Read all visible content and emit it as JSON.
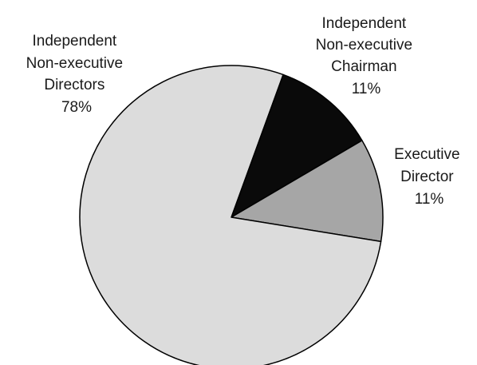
{
  "chart_data": {
    "type": "pie",
    "slices": [
      {
        "label_lines": [
          "Independent",
          "Non-executive",
          "Chairman",
          "11%"
        ],
        "value": 11,
        "color": "#0a0a0a"
      },
      {
        "label_lines": [
          "Executive",
          "Director",
          "11%"
        ],
        "value": 11,
        "color": "#a6a6a6"
      },
      {
        "label_lines": [
          "Independent",
          "Non-executive",
          "Directors",
          "78%"
        ],
        "value": 78,
        "color": "#dcdcdc"
      }
    ],
    "outline_color": "#000000",
    "legend": "none"
  }
}
